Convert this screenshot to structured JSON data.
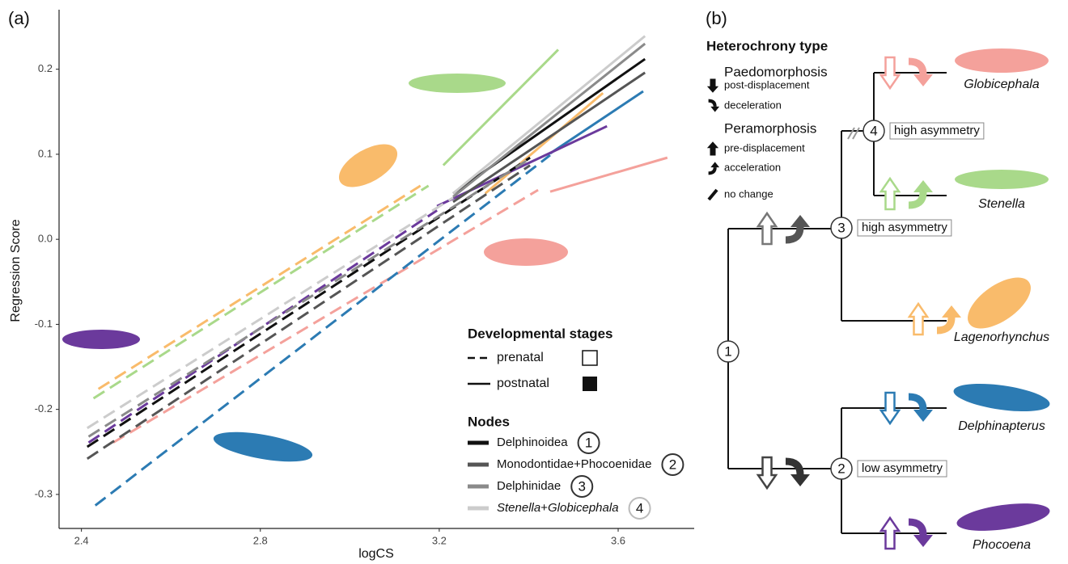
{
  "chart_data": {
    "type": "line",
    "label": "(a)",
    "x_label": "logCS",
    "y_label": "Regression Score",
    "xlim": [
      2.35,
      3.77
    ],
    "ylim": [
      -0.34,
      0.27
    ],
    "xticks": [
      2.4,
      2.8,
      3.2,
      3.6
    ],
    "yticks": [
      -0.3,
      -0.2,
      -0.1,
      {
        "value": 0,
        "label": "0.0"
      },
      0.1,
      0.2
    ],
    "legend_stages": {
      "title": "Developmental stages",
      "prenatal": "prenatal",
      "postnatal": "postnatal"
    },
    "legend_nodes_title": "Nodes",
    "series": [
      {
        "color": "#a9d98a",
        "prenatal": {
          "x": [
            2.427,
            3.176
          ],
          "y": [
            -0.187,
            0.063
          ]
        },
        "postnatal": {
          "x": [
            3.209,
            3.466
          ],
          "y": [
            0.087,
            0.223
          ]
        }
      },
      {
        "color": "#f9bb6b",
        "prenatal": {
          "x": [
            2.438,
            3.158
          ],
          "y": [
            -0.176,
            0.063
          ]
        },
        "postnatal": {
          "x": [
            3.303,
            3.566
          ],
          "y": [
            0.054,
            0.172
          ]
        }
      },
      {
        "color": "#f4a19b",
        "prenatal": {
          "x": [
            2.471,
            3.421
          ],
          "y": [
            -0.239,
            0.058
          ]
        },
        "postnatal": {
          "x": [
            3.448,
            3.71
          ],
          "y": [
            0.056,
            0.096
          ]
        }
      },
      {
        "color": "#2c7bb3",
        "prenatal": {
          "x": [
            2.431,
            3.448
          ],
          "y": [
            -0.313,
            0.099
          ]
        },
        "postnatal": {
          "x": [
            3.448,
            3.656
          ],
          "y": [
            0.101,
            0.174
          ]
        }
      },
      {
        "color": "#6b3a9c",
        "prenatal": {
          "x": [
            2.416,
            3.195
          ],
          "y": [
            -0.239,
            0.034
          ]
        },
        "postnatal": {
          "x": [
            3.195,
            3.575
          ],
          "y": [
            0.039,
            0.133
          ]
        }
      },
      {
        "name": "Delphinoidea",
        "node": "1",
        "color": "#111111",
        "prenatal": {
          "x": [
            2.413,
            3.403
          ],
          "y": [
            -0.244,
            0.096
          ]
        },
        "postnatal": {
          "x": [
            3.231,
            3.66
          ],
          "y": [
            0.054,
            0.212
          ]
        }
      },
      {
        "name": "Monodontidae+Phocoenidae",
        "node": "2",
        "color": "#555555",
        "prenatal": {
          "x": [
            2.413,
            3.403
          ],
          "y": [
            -0.258,
            0.087
          ]
        },
        "postnatal": {
          "x": [
            3.231,
            3.66
          ],
          "y": [
            0.044,
            0.196
          ]
        }
      },
      {
        "name": "Delphinidae",
        "node": "3",
        "color": "#8a8a8a",
        "prenatal": {
          "x": [
            2.416,
            3.394
          ],
          "y": [
            -0.232,
            0.092
          ]
        },
        "postnatal": {
          "x": [
            3.231,
            3.66
          ],
          "y": [
            0.05,
            0.23
          ]
        }
      },
      {
        "name": "Stenella+Globicephala",
        "node": "4",
        "color": "#cccccc",
        "prenatal": {
          "x": [
            2.413,
            3.231
          ],
          "y": [
            -0.222,
            0.049
          ]
        },
        "postnatal": {
          "x": [
            3.231,
            3.66
          ],
          "y": [
            0.054,
            0.239
          ]
        }
      }
    ]
  },
  "panel_b": {
    "label": "(b)",
    "legend": {
      "title": "Heterochrony type",
      "groups": [
        {
          "name": "Paedomorphosis",
          "items": [
            "post-displacement",
            "deceleration"
          ]
        },
        {
          "name": "Peramorphosis",
          "items": [
            "pre-displacement",
            "acceleration"
          ]
        }
      ],
      "no_change": "no change"
    },
    "nodes": [
      {
        "label": "1"
      },
      {
        "label": "2",
        "note": "low asymmetry"
      },
      {
        "label": "3",
        "note": "high asymmetry"
      },
      {
        "label": "4",
        "note": "high asymmetry"
      }
    ],
    "taxa": [
      "Globicephala",
      "Stenella",
      "Lagenorhynchus",
      "Delphinapterus",
      "Phocoena"
    ]
  }
}
